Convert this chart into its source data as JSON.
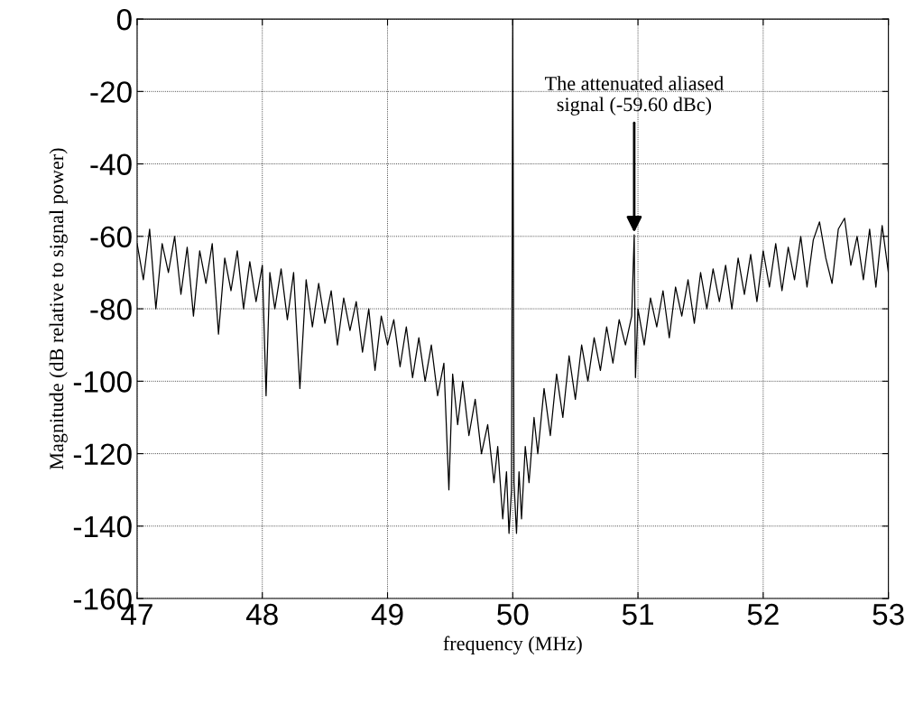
{
  "chart_data": {
    "type": "line",
    "xlabel": "frequency (MHz)",
    "ylabel": "Magnitude (dB relative to signal power)",
    "xlim": [
      47,
      53
    ],
    "xticks": [
      47,
      48,
      49,
      50,
      51,
      52,
      53
    ],
    "ylim": [
      -160,
      0
    ],
    "yticks": [
      -160,
      -140,
      -120,
      -100,
      -80,
      -60,
      -40,
      -20,
      0
    ],
    "grid": true,
    "line_style": "solid",
    "marker": "none",
    "annotations": [
      {
        "text": "The attenuated aliased\nsignal (-59.60 dBc)",
        "x": 50.97,
        "y": -59.6
      }
    ],
    "series": [
      {
        "color": "#000000",
        "x": [
          47.0,
          47.05,
          47.1,
          47.15,
          47.2,
          47.25,
          47.3,
          47.35,
          47.4,
          47.45,
          47.5,
          47.55,
          47.6,
          47.65,
          47.7,
          47.75,
          47.8,
          47.85,
          47.9,
          47.95,
          48.0,
          48.03,
          48.06,
          48.1,
          48.15,
          48.2,
          48.25,
          48.3,
          48.35,
          48.4,
          48.45,
          48.5,
          48.55,
          48.6,
          48.65,
          48.7,
          48.75,
          48.8,
          48.85,
          48.9,
          48.95,
          49.0,
          49.05,
          49.1,
          49.15,
          49.2,
          49.25,
          49.3,
          49.35,
          49.4,
          49.45,
          49.49,
          49.52,
          49.56,
          49.6,
          49.65,
          49.7,
          49.75,
          49.8,
          49.85,
          49.88,
          49.92,
          49.95,
          49.97,
          49.99,
          50.0,
          50.01,
          50.03,
          50.05,
          50.07,
          50.1,
          50.13,
          50.17,
          50.2,
          50.25,
          50.3,
          50.35,
          50.4,
          50.45,
          50.5,
          50.55,
          50.6,
          50.65,
          50.7,
          50.75,
          50.8,
          50.85,
          50.9,
          50.95,
          50.97,
          50.98,
          51.0,
          51.05,
          51.1,
          51.15,
          51.2,
          51.25,
          51.3,
          51.35,
          51.4,
          51.45,
          51.5,
          51.55,
          51.6,
          51.65,
          51.7,
          51.75,
          51.8,
          51.85,
          51.9,
          51.95,
          52.0,
          52.05,
          52.1,
          52.15,
          52.2,
          52.25,
          52.3,
          52.35,
          52.4,
          52.45,
          52.5,
          52.55,
          52.6,
          52.65,
          52.7,
          52.75,
          52.8,
          52.85,
          52.9,
          52.95,
          53.0
        ],
        "values": [
          -62,
          -72,
          -58,
          -80,
          -62,
          -70,
          -60,
          -76,
          -63,
          -82,
          -64,
          -73,
          -62,
          -87,
          -66,
          -75,
          -64,
          -80,
          -67,
          -78,
          -68,
          -104,
          -70,
          -80,
          -69,
          -83,
          -70,
          -102,
          -72,
          -85,
          -73,
          -84,
          -75,
          -90,
          -77,
          -86,
          -78,
          -92,
          -80,
          -97,
          -82,
          -90,
          -83,
          -96,
          -85,
          -99,
          -88,
          -100,
          -90,
          -104,
          -95,
          -130,
          -98,
          -112,
          -100,
          -115,
          -105,
          -120,
          -112,
          -128,
          -118,
          -138,
          -125,
          -142,
          -130,
          0,
          -128,
          -142,
          -125,
          -138,
          -118,
          -128,
          -110,
          -120,
          -102,
          -115,
          -98,
          -110,
          -93,
          -105,
          -90,
          -100,
          -88,
          -97,
          -85,
          -95,
          -83,
          -90,
          -82,
          -59.6,
          -99,
          -80,
          -90,
          -77,
          -85,
          -75,
          -88,
          -74,
          -82,
          -72,
          -84,
          -70,
          -80,
          -69,
          -78,
          -68,
          -80,
          -66,
          -76,
          -65,
          -78,
          -64,
          -74,
          -62,
          -75,
          -63,
          -72,
          -60,
          -74,
          -61,
          -56,
          -66,
          -73,
          -58,
          -55,
          -68,
          -60,
          -72,
          -58,
          -74,
          -57,
          -70
        ]
      }
    ]
  }
}
